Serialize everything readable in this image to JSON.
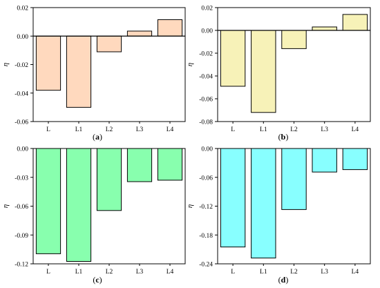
{
  "chart_data": [
    {
      "type": "bar",
      "panel_label": "a",
      "categories": [
        "L",
        "L1",
        "L2",
        "L3",
        "L4"
      ],
      "values": [
        -0.038,
        -0.05,
        -0.011,
        0.0035,
        0.0115
      ],
      "ylabel": "η",
      "ylim": [
        -0.06,
        0.02
      ],
      "yticks": [
        "0.02",
        "0.00",
        "-0.02",
        "-0.04",
        "-0.06"
      ],
      "color": "#FFD9BE",
      "grid": false
    },
    {
      "type": "bar",
      "panel_label": "b",
      "categories": [
        "L",
        "L1",
        "L2",
        "L3",
        "L4"
      ],
      "values": [
        -0.049,
        -0.072,
        -0.016,
        0.003,
        0.014
      ],
      "ylabel": "η",
      "ylim": [
        -0.08,
        0.02
      ],
      "yticks": [
        "0.02",
        "0.00",
        "-0.02",
        "-0.04",
        "-0.06",
        "-0.08"
      ],
      "color": "#F7F2B8",
      "grid": false
    },
    {
      "type": "bar",
      "panel_label": "c",
      "categories": [
        "L",
        "L1",
        "L2",
        "L3",
        "L4"
      ],
      "values": [
        -0.1095,
        -0.1175,
        -0.0645,
        -0.0345,
        -0.033
      ],
      "ylabel": "η",
      "ylim": [
        -0.12,
        0.0
      ],
      "yticks": [
        "0.00",
        "-0.03",
        "-0.06",
        "-0.09",
        "-0.12"
      ],
      "color": "#88FFAE",
      "grid": false
    },
    {
      "type": "bar",
      "panel_label": "d",
      "categories": [
        "L",
        "L1",
        "L2",
        "L3",
        "L4"
      ],
      "values": [
        -0.205,
        -0.228,
        -0.127,
        -0.049,
        -0.044
      ],
      "ylabel": "η",
      "ylim": [
        -0.24,
        0.0
      ],
      "yticks": [
        "0.00",
        "-0.06",
        "-0.12",
        "-0.18",
        "-0.24"
      ],
      "color": "#88FFFF",
      "grid": false
    }
  ]
}
